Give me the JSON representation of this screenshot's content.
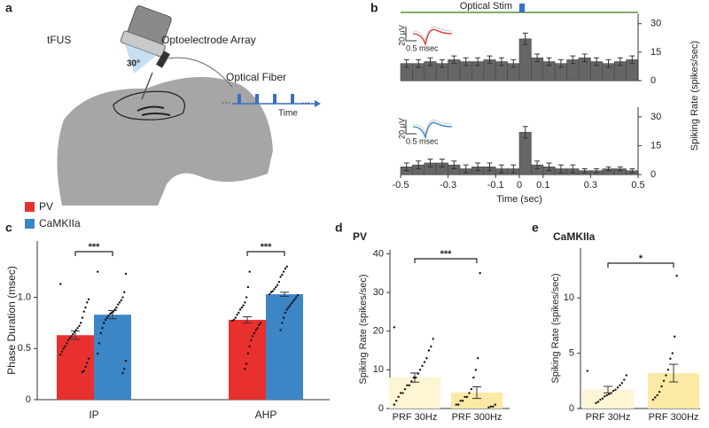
{
  "illustration": {
    "panel": "a",
    "tfus": "tFUS",
    "array": "Optoelectrode Array",
    "angle": "30°",
    "fiber": "Optical Fiber",
    "time": "Time",
    "ellipsis": "···"
  },
  "chart_data": [
    {
      "type": "histogram",
      "panel": "b",
      "annotation": "Optical Stim",
      "y_label": "Spiking Rate (spikes/sec)",
      "inset": {
        "amplitude": "20 μV",
        "duration": "0.5 msec",
        "color": "#e0302f"
      },
      "bins": [
        -0.5,
        -0.45,
        -0.4,
        -0.35,
        -0.3,
        -0.25,
        -0.2,
        -0.15,
        -0.1,
        -0.05,
        0,
        0.05,
        0.1,
        0.15,
        0.2,
        0.25,
        0.3,
        0.35,
        0.4,
        0.45,
        0.5
      ],
      "values": [
        9,
        9,
        10,
        9,
        11,
        10,
        10,
        11,
        10,
        9,
        22,
        12,
        10,
        9,
        11,
        12,
        10,
        9,
        10,
        11
      ],
      "errors": [
        2,
        2,
        2,
        2,
        2,
        2,
        2,
        2,
        2,
        2,
        3,
        2,
        2,
        2,
        2,
        2,
        2,
        2,
        2,
        2
      ],
      "color": "#666666",
      "xlim": [
        -0.5,
        0.5
      ],
      "ylim": [
        0,
        35
      ],
      "yticks": [
        0,
        15,
        30
      ]
    },
    {
      "type": "histogram",
      "inset": {
        "amplitude": "20 μV",
        "duration": "0.5 msec",
        "color": "#2f7fc1"
      },
      "bins": [
        -0.5,
        -0.45,
        -0.4,
        -0.35,
        -0.3,
        -0.25,
        -0.2,
        -0.15,
        -0.1,
        -0.05,
        0,
        0.05,
        0.1,
        0.15,
        0.2,
        0.25,
        0.3,
        0.35,
        0.4,
        0.45,
        0.5
      ],
      "values": [
        4,
        5,
        6,
        6,
        5,
        3,
        4,
        4,
        3,
        3,
        22,
        5,
        4,
        3,
        3,
        2,
        2,
        3,
        3,
        2
      ],
      "errors": [
        2,
        2,
        2,
        2,
        2,
        2,
        2,
        2,
        2,
        2,
        3,
        2,
        2,
        2,
        2,
        1,
        1,
        1,
        1,
        1
      ],
      "color": "#666666",
      "xlim": [
        -0.5,
        0.5
      ],
      "ylim": [
        0,
        35
      ],
      "yticks": [
        0,
        15,
        30
      ],
      "xticks": [
        -0.5,
        -0.3,
        -0.1,
        0,
        0.1,
        0.3,
        0.5
      ],
      "x_label": "Time (sec)"
    },
    {
      "type": "bar",
      "panel": "c",
      "y_label": "Phase Duration (msec)",
      "legend": "upper left",
      "categories": [
        "IP",
        "AHP"
      ],
      "series": [
        {
          "name": "PV",
          "color": "#e8312f",
          "values": [
            0.63,
            0.78
          ],
          "errors": [
            0.04,
            0.03
          ],
          "points": [
            [
              1.13,
              0.98,
              0.95,
              0.9,
              0.86,
              0.8,
              0.75,
              0.72,
              0.7,
              0.68,
              0.66,
              0.64,
              0.62,
              0.6,
              0.58,
              0.55,
              0.52,
              0.5,
              0.47,
              0.44,
              0.4,
              0.36,
              0.32,
              0.28,
              0.27
            ],
            [
              1.25,
              1.1,
              1.0,
              0.95,
              0.92,
              0.9,
              0.88,
              0.85,
              0.83,
              0.8,
              0.78,
              0.77,
              0.75,
              0.73,
              0.7,
              0.68,
              0.65,
              0.62,
              0.58,
              0.52,
              0.45,
              0.35,
              0.3
            ]
          ]
        },
        {
          "name": "CaMKIIa",
          "color": "#3d86c6",
          "values": [
            0.83,
            1.03
          ],
          "errors": [
            0.04,
            0.02
          ],
          "points": [
            [
              1.25,
              1.23,
              1.05,
              1.0,
              0.97,
              0.95,
              0.93,
              0.9,
              0.88,
              0.86,
              0.85,
              0.84,
              0.82,
              0.8,
              0.78,
              0.75,
              0.7,
              0.65,
              0.55,
              0.45,
              0.38,
              0.3,
              0.26
            ],
            [
              1.3,
              1.28,
              1.25,
              1.22,
              1.2,
              1.15,
              1.12,
              1.1,
              1.08,
              1.06,
              1.05,
              1.03,
              1.02,
              1.0,
              0.98,
              0.96,
              0.94,
              0.92,
              0.9,
              0.88,
              0.85,
              0.8,
              0.75,
              0.68
            ]
          ]
        }
      ],
      "ylim": [
        0,
        1.55
      ],
      "yticks": [
        0,
        0.5,
        {
          "value": 1,
          "label": "1.0"
        }
      ],
      "significance": [
        "***",
        "***"
      ]
    },
    {
      "type": "bar",
      "panel": "d",
      "title": "PV",
      "title_color": "#7030a0",
      "y_label": "Spiking Rate  (spikes/sec)",
      "categories": [
        "PRF 30Hz",
        "PRF 300Hz"
      ],
      "colors": [
        "#fdf5d3",
        "#fde9a6"
      ],
      "values": [
        8.0,
        4.1
      ],
      "errors": [
        1.2,
        1.5
      ],
      "points": [
        [
          21,
          18,
          16,
          15,
          13,
          12,
          11,
          10,
          9,
          8,
          8,
          7,
          6,
          6,
          5,
          4,
          4,
          3,
          2,
          1
        ],
        [
          35,
          13,
          10,
          8,
          5,
          4,
          3,
          3,
          2,
          2,
          1,
          1,
          1,
          0.5,
          0.5,
          0.3
        ]
      ],
      "ylim": [
        0,
        41
      ],
      "yticks": [
        0,
        10,
        20,
        30,
        40
      ],
      "significance": [
        "***"
      ]
    },
    {
      "type": "bar",
      "panel": "e",
      "title": "CaMKIIa",
      "title_color": "#2f5fa8",
      "y_label": "Spiking Rate  (spikes/sec)",
      "categories": [
        "PRF 30Hz",
        "PRF 300Hz"
      ],
      "colors": [
        "#fdf5d3",
        "#fde9a6"
      ],
      "values": [
        1.7,
        3.2
      ],
      "errors": [
        0.3,
        0.8
      ],
      "points": [
        [
          3.4,
          3.0,
          2.6,
          2.3,
          2.1,
          1.9,
          1.7,
          1.6,
          1.4,
          1.3,
          1.2,
          1.1,
          0.9,
          0.8,
          0.6,
          0.5
        ],
        [
          12,
          6.5,
          5,
          4.5,
          3.5,
          3,
          2.5,
          2,
          1.5,
          1.2,
          1,
          0.8
        ]
      ],
      "ylim": [
        0,
        14.5
      ],
      "yticks": [
        0,
        5,
        10
      ],
      "significance": [
        "*"
      ]
    }
  ]
}
